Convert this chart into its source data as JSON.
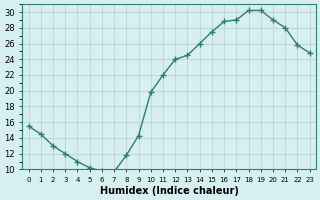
{
  "x": [
    0,
    1,
    2,
    3,
    4,
    5,
    6,
    7,
    8,
    9,
    10,
    11,
    12,
    13,
    14,
    15,
    16,
    17,
    18,
    19,
    20,
    21,
    22,
    23
  ],
  "y": [
    15.5,
    14.5,
    13.0,
    12.0,
    11.0,
    10.2,
    9.8,
    9.7,
    11.8,
    14.3,
    19.8,
    22.0,
    24.0,
    24.5,
    26.0,
    27.5,
    28.8,
    29.0,
    30.2,
    30.2,
    29.0,
    28.0,
    25.8,
    24.8
  ],
  "xlabel": "Humidex (Indice chaleur)",
  "ylabel": "",
  "title": "",
  "line_color": "#2e7d6e",
  "marker": "P",
  "bg_color": "#d6f0f0",
  "grid_major_color": "#c0d8d8",
  "grid_minor_color": "#e0ecec",
  "ylim": [
    10,
    31
  ],
  "yticks": [
    10,
    12,
    14,
    16,
    18,
    20,
    22,
    24,
    26,
    28,
    30
  ],
  "xlim": [
    -0.5,
    23.5
  ],
  "xticks": [
    0,
    1,
    2,
    3,
    4,
    5,
    6,
    7,
    8,
    9,
    10,
    11,
    12,
    13,
    14,
    15,
    16,
    17,
    18,
    19,
    20,
    21,
    22,
    23
  ]
}
